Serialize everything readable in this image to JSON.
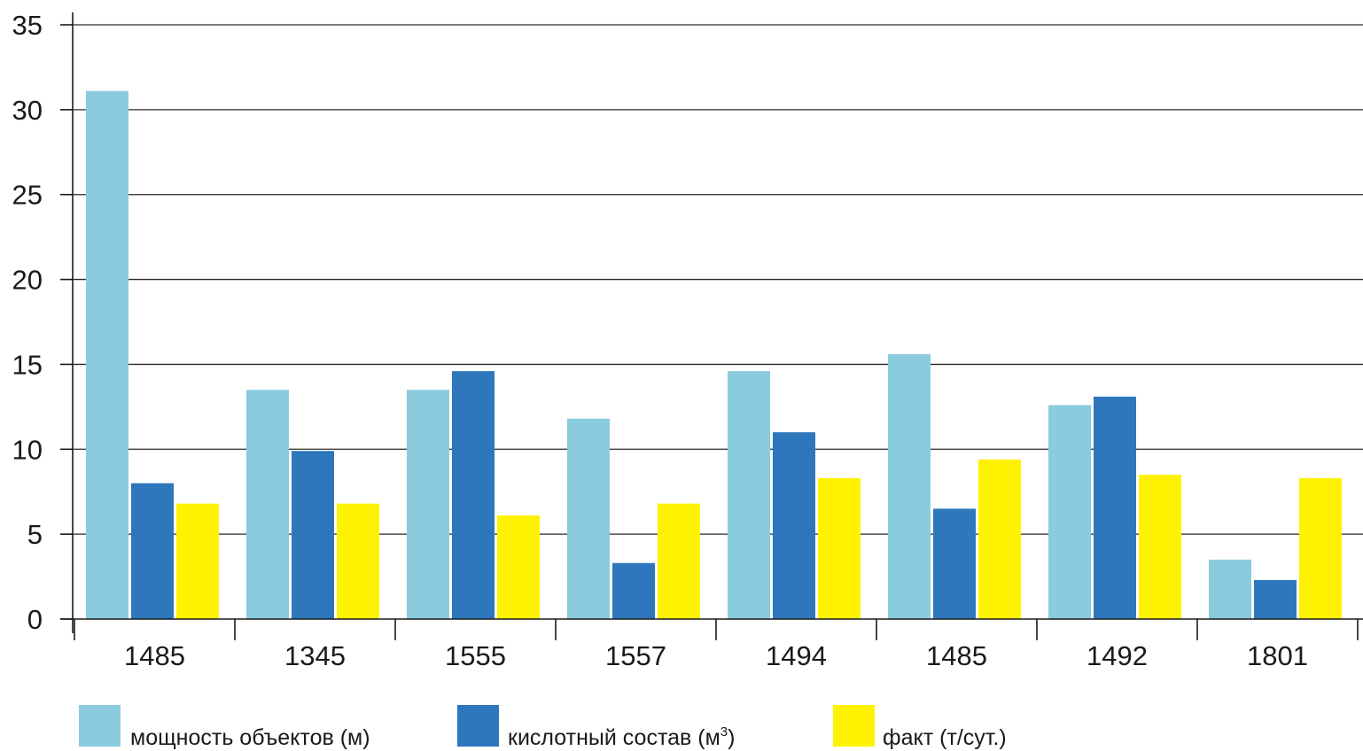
{
  "chart_data": {
    "type": "bar",
    "title": "",
    "xlabel": "",
    "ylabel": "",
    "ylim": [
      0,
      35
    ],
    "yticks": [
      0,
      5,
      10,
      15,
      20,
      25,
      30,
      35
    ],
    "categories": [
      "1485",
      "1345",
      "1555",
      "1557",
      "1494",
      "1485",
      "1492",
      "1801"
    ],
    "series": [
      {
        "name": "мощность объектов (м)",
        "color": "#8acbde",
        "values": [
          31.1,
          13.5,
          13.5,
          11.8,
          14.6,
          15.6,
          12.6,
          3.5
        ]
      },
      {
        "name": "кислотный состав (м³)",
        "color": "#2e77bd",
        "values": [
          8.0,
          9.9,
          14.6,
          3.3,
          11.0,
          6.5,
          13.1,
          2.3
        ]
      },
      {
        "name": "факт (т/сут.)",
        "color": "#fff200",
        "values": [
          6.8,
          6.8,
          6.1,
          6.8,
          8.3,
          9.4,
          8.5,
          8.3
        ]
      }
    ],
    "grid": true,
    "legend": "bottom-left"
  },
  "legend": {
    "items": [
      {
        "text": "мощность объектов (м)",
        "sup": ""
      },
      {
        "text": "кислотный состав (м",
        "sup": "3",
        "after": ")"
      },
      {
        "text": "факт (т/сут.)",
        "sup": ""
      }
    ]
  }
}
